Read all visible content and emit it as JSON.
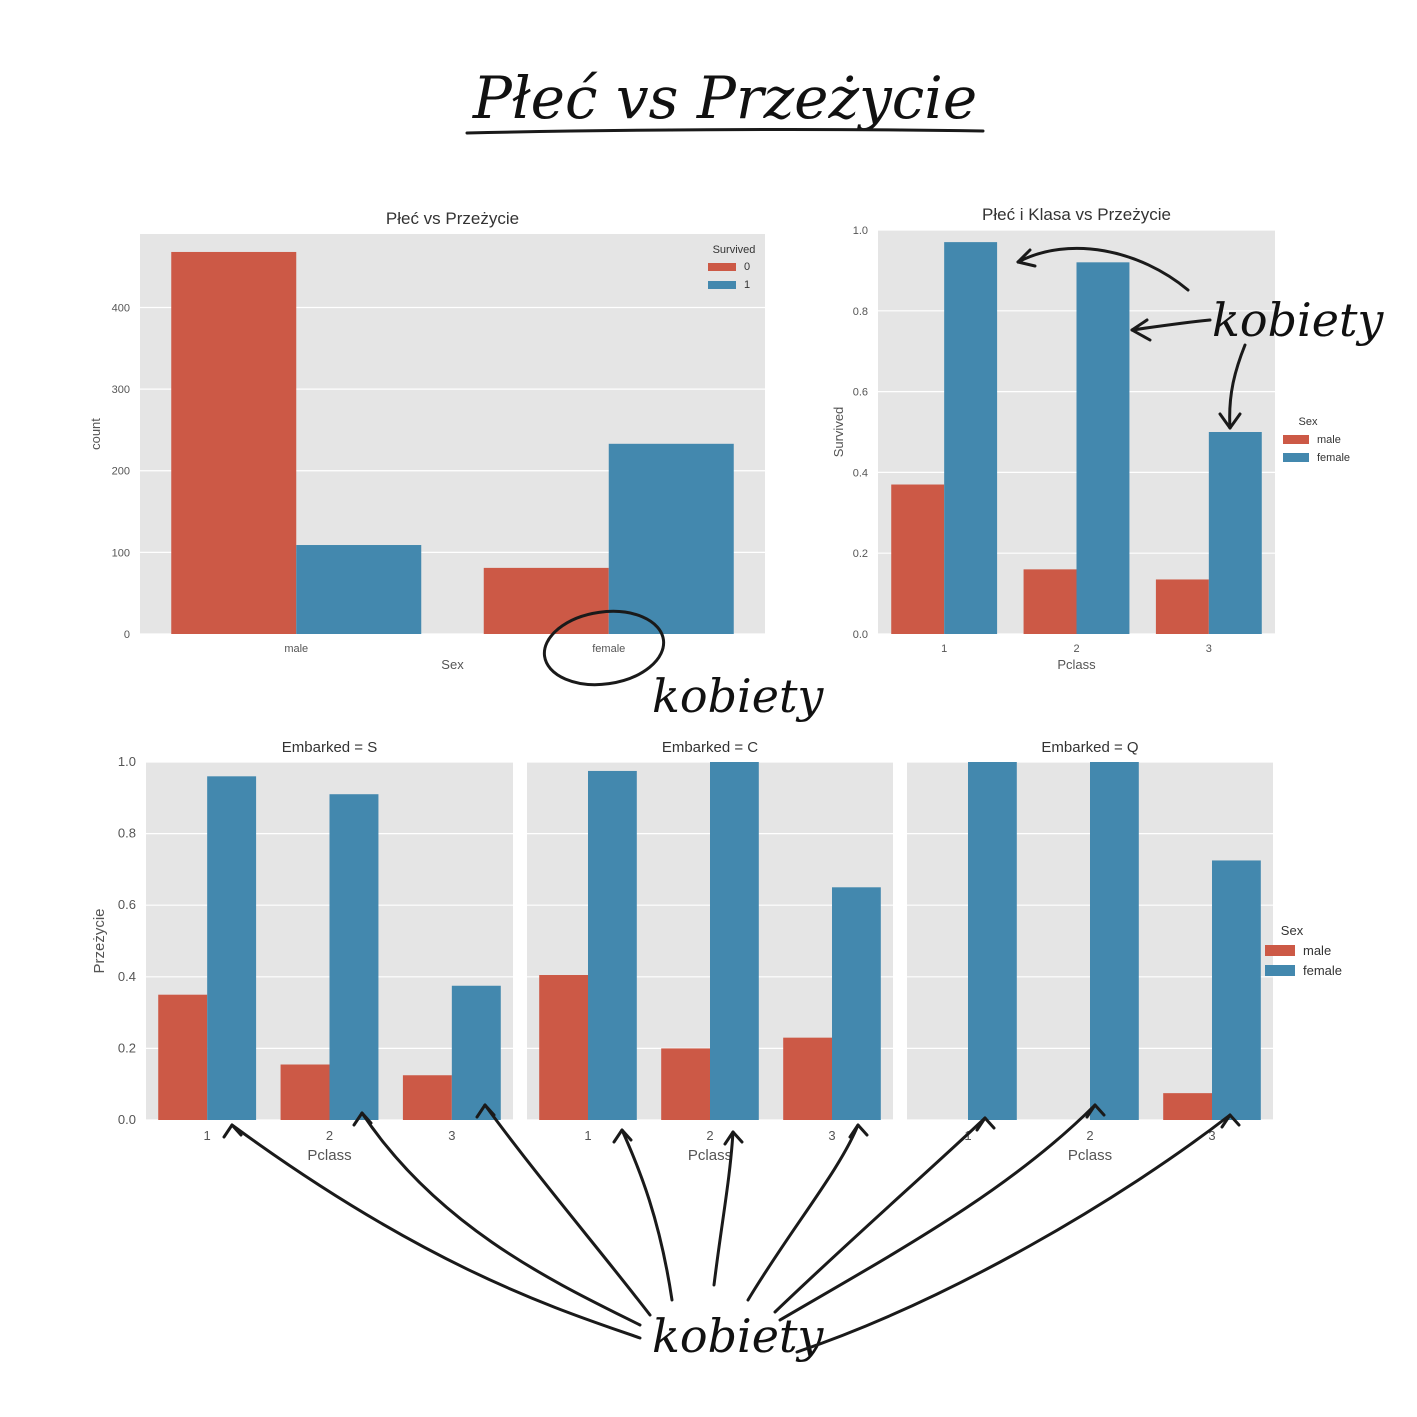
{
  "page_title": "Płeć vs Przeżycie",
  "annotation_text": "kobiety",
  "colors": {
    "male": "#cc5946",
    "female": "#4388ae",
    "panel": "#e5e5e5",
    "ink": "#1a1a1a"
  },
  "chart_data": [
    {
      "type": "bar",
      "title": "Płeć vs Przeżycie",
      "xlabel": "Sex",
      "ylabel": "count",
      "categories": [
        "male",
        "female"
      ],
      "legend_title": "Survived",
      "legend_position": "top-right",
      "series": [
        {
          "name": "0",
          "values": [
            468,
            81
          ]
        },
        {
          "name": "1",
          "values": [
            109,
            233
          ]
        }
      ],
      "ylim": [
        0,
        490
      ],
      "yticks": [
        0,
        100,
        200,
        300,
        400
      ],
      "grid": true
    },
    {
      "type": "bar",
      "title": "Płeć i Klasa vs Przeżycie",
      "xlabel": "Pclass",
      "ylabel": "Survived",
      "categories": [
        "1",
        "2",
        "3"
      ],
      "legend_title": "Sex",
      "legend_position": "right",
      "series": [
        {
          "name": "male",
          "values": [
            0.37,
            0.16,
            0.135
          ]
        },
        {
          "name": "female",
          "values": [
            0.97,
            0.92,
            0.5
          ]
        }
      ],
      "ylim": [
        0,
        1.0
      ],
      "yticks": [
        0.0,
        0.2,
        0.4,
        0.6,
        0.8,
        1.0
      ],
      "grid": true
    },
    {
      "type": "bar",
      "facets": true,
      "facet_titles": [
        "Embarked = S",
        "Embarked = C",
        "Embarked = Q"
      ],
      "xlabel": "Pclass",
      "ylabel": "Przeżycie",
      "categories": [
        "1",
        "2",
        "3"
      ],
      "legend_title": "Sex",
      "legend_position": "right",
      "panels": [
        {
          "series": [
            {
              "name": "male",
              "values": [
                0.35,
                0.155,
                0.125
              ]
            },
            {
              "name": "female",
              "values": [
                0.96,
                0.91,
                0.375
              ]
            }
          ]
        },
        {
          "series": [
            {
              "name": "male",
              "values": [
                0.405,
                0.2,
                0.23
              ]
            },
            {
              "name": "female",
              "values": [
                0.975,
                1.0,
                0.65
              ]
            }
          ]
        },
        {
          "series": [
            {
              "name": "male",
              "values": [
                0.0,
                0.0,
                0.075
              ]
            },
            {
              "name": "female",
              "values": [
                1.0,
                1.0,
                0.725
              ]
            }
          ]
        }
      ],
      "ylim": [
        0,
        1.0
      ],
      "yticks": [
        0.0,
        0.2,
        0.4,
        0.6,
        0.8,
        1.0
      ],
      "grid": true
    }
  ]
}
